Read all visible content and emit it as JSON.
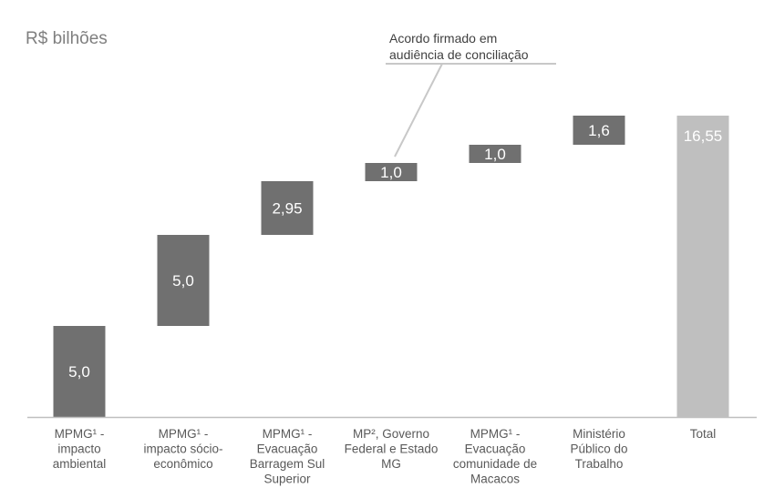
{
  "chart_data": {
    "type": "waterfall",
    "unit_label": "R$ bilhões",
    "annotation": "Acordo firmado em\naudiência de conciliação",
    "categories": [
      "MPMG¹ -\nimpacto\nambiental",
      "MPMG¹ -\nimpacto sócio-\neconômico",
      "MPMG¹ -\nEvacuação\nBarragem Sul\nSuperior",
      "MP², Governo\nFederal e Estado\nMG",
      "MPMG¹ -\nEvacuação\ncomunidade de\nMacacos",
      "Ministério\nPúblico do\nTrabalho",
      "Total"
    ],
    "values": [
      5.0,
      5.0,
      2.95,
      1.0,
      1.0,
      1.6,
      16.55
    ],
    "value_labels": [
      "5,0",
      "5,0",
      "2,95",
      "1,0",
      "1,0",
      "1,6",
      "16,55"
    ],
    "is_total": [
      false,
      false,
      false,
      false,
      false,
      false,
      true
    ],
    "ylim": [
      0,
      17.4
    ],
    "colors": {
      "step": "#707070",
      "total": "#bfbfbf",
      "axis": "#bfbfbf",
      "text": "#595959",
      "annotation_line": "#c8c8c8"
    }
  }
}
